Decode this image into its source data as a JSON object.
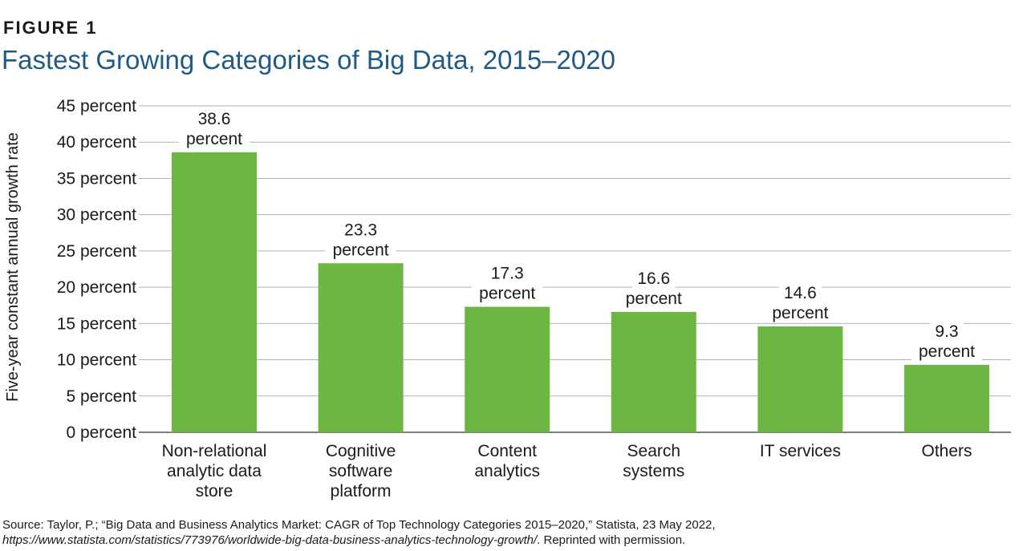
{
  "figure_label": "FIGURE 1",
  "chart_data": {
    "type": "bar",
    "title": "Fastest Growing Categories of Big Data, 2015–2020",
    "ylabel": "Five-year constant annual growth rate",
    "xlabel": "",
    "ylim": [
      0,
      45
    ],
    "y_ticks": [
      {
        "value": 0,
        "label": "0 percent"
      },
      {
        "value": 5,
        "label": "5 percent"
      },
      {
        "value": 10,
        "label": "10 percent"
      },
      {
        "value": 15,
        "label": "15 percent"
      },
      {
        "value": 20,
        "label": "20 percent"
      },
      {
        "value": 25,
        "label": "25 percent"
      },
      {
        "value": 30,
        "label": "30 percent"
      },
      {
        "value": 35,
        "label": "35 percent"
      },
      {
        "value": 40,
        "label": "40 percent"
      },
      {
        "value": 45,
        "label": "45 percent"
      }
    ],
    "grid": true,
    "bar_color": "#6db643",
    "grid_color": "#b3b3b3",
    "categories": [
      "Non-relational analytic data store",
      "Cognitive software platform",
      "Content analytics",
      "Search systems",
      "IT services",
      "Others"
    ],
    "category_lines": [
      [
        "Non-relational",
        "analytic data",
        "store"
      ],
      [
        "Cognitive",
        "software",
        "platform"
      ],
      [
        "Content",
        "analytics"
      ],
      [
        "Search",
        "systems"
      ],
      [
        "IT services"
      ],
      [
        "Others"
      ]
    ],
    "values": [
      38.6,
      23.3,
      17.3,
      16.6,
      14.6,
      9.3
    ],
    "data_labels": [
      [
        "38.6",
        "percent"
      ],
      [
        "23.3",
        "percent"
      ],
      [
        "17.3",
        "percent"
      ],
      [
        "16.6",
        "percent"
      ],
      [
        "14.6",
        "percent"
      ],
      [
        "9.3",
        "percent"
      ]
    ]
  },
  "source": {
    "line1": "Source: Taylor, P.; “Big Data and Business Analytics Market: CAGR of Top Technology Categories 2015–2020,” Statista, 23 May 2022,",
    "url": "https://www.statista.com/statistics/773976/worldwide-big-data-business-analytics-technology-growth/",
    "suffix": ". Reprinted with permission."
  }
}
